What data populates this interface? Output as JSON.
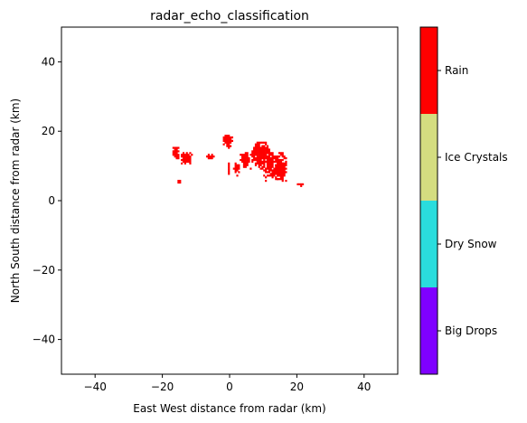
{
  "chart_data": {
    "type": "heatmap",
    "title": "radar_echo_classification",
    "xlabel": "East West distance from radar (km)",
    "ylabel": "North South distance from radar (km)",
    "xlim": [
      -50,
      50
    ],
    "ylim": [
      -50,
      50
    ],
    "xticks": [
      -40,
      -20,
      0,
      20,
      40
    ],
    "yticks": [
      -40,
      -20,
      0,
      20,
      40
    ],
    "grid": false,
    "colorbar": {
      "categories": [
        {
          "label": "Big Drops",
          "color": "#7f00ff"
        },
        {
          "label": "Dry Snow",
          "color": "#2adddd"
        },
        {
          "label": "Ice Crystals",
          "color": "#d4dd80"
        },
        {
          "label": "Rain",
          "color": "#ff0000"
        }
      ]
    },
    "echo_regions": [
      {
        "class": "Rain",
        "x": [
          -17.5,
          -15
        ],
        "y": [
          11.5,
          15.5
        ]
      },
      {
        "class": "Rain",
        "x": [
          -15,
          -11
        ],
        "y": [
          10,
          14
        ]
      },
      {
        "class": "Rain",
        "x": [
          -15.5,
          -14.5
        ],
        "y": [
          5,
          6
        ]
      },
      {
        "class": "Rain",
        "x": [
          -7,
          -4.5
        ],
        "y": [
          11.5,
          13.5
        ]
      },
      {
        "class": "Rain",
        "x": [
          -2.5,
          1
        ],
        "y": [
          15,
          19
        ]
      },
      {
        "class": "Rain",
        "x": [
          -1,
          0
        ],
        "y": [
          7.5,
          11
        ]
      },
      {
        "class": "Rain",
        "x": [
          1,
          3
        ],
        "y": [
          7,
          11
        ]
      },
      {
        "class": "Rain",
        "x": [
          3,
          6
        ],
        "y": [
          9,
          14
        ]
      },
      {
        "class": "Rain",
        "x": [
          6,
          12
        ],
        "y": [
          9,
          17
        ]
      },
      {
        "class": "Rain",
        "x": [
          10,
          17
        ],
        "y": [
          5.5,
          14
        ]
      },
      {
        "class": "Rain",
        "x": [
          13,
          16.5
        ],
        "y": [
          6,
          11
        ]
      },
      {
        "class": "Rain",
        "x": [
          20,
          22
        ],
        "y": [
          4,
          5
        ]
      }
    ]
  }
}
